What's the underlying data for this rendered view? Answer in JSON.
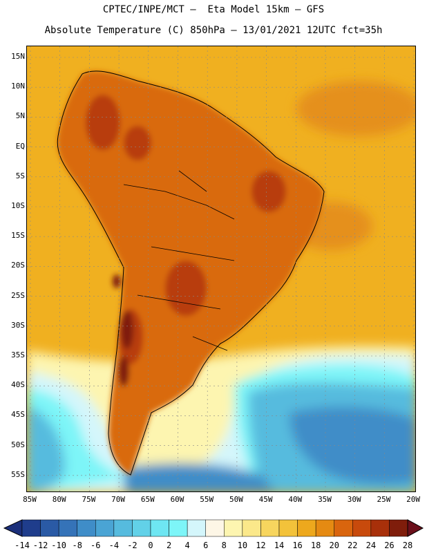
{
  "header": {
    "line1": "CPTEC/INPE/MCT –  Eta Model 15km – GFS",
    "line2": "Absolute Temperature (C) 850hPa – 13/01/2021 12UTC fct=35h"
  },
  "map": {
    "region": "South America",
    "lat_labels": [
      "15N",
      "10N",
      "5N",
      "EQ",
      "5S",
      "10S",
      "15S",
      "20S",
      "25S",
      "30S",
      "35S",
      "40S",
      "45S",
      "50S",
      "55S"
    ],
    "lon_labels": [
      "85W",
      "80W",
      "75W",
      "70W",
      "65W",
      "60W",
      "55W",
      "50W",
      "45W",
      "40W",
      "35W",
      "30W",
      "25W",
      "20W"
    ]
  },
  "colorbar": {
    "labels": [
      "-14",
      "-12",
      "-10",
      "-8",
      "-6",
      "-4",
      "-2",
      "0",
      "2",
      "4",
      "6",
      "8",
      "10",
      "12",
      "14",
      "16",
      "18",
      "20",
      "22",
      "24",
      "26",
      "28"
    ],
    "colors": [
      "#1f3d8c",
      "#2a5aa5",
      "#3573b8",
      "#3f8dc8",
      "#4aa4d4",
      "#56bbde",
      "#62d1e8",
      "#6ee6f2",
      "#7df5f8",
      "#d4f6fb",
      "#fdf6e6",
      "#fdf5b0",
      "#fbe88a",
      "#f7d55e",
      "#f3c23a",
      "#eda81d",
      "#e58a12",
      "#d9650e",
      "#c84a0c",
      "#a8300a",
      "#7f1d0b"
    ],
    "left_arrow_color": "#1b2f7a",
    "right_arrow_color": "#6b0f1a"
  },
  "field_colors": {
    "ocean_warm": "#f0b020",
    "ocean_hot": "#e5901a",
    "land_hot": "#d96a10",
    "land_very_hot": "#b83c0a",
    "land_max": "#7f1d0b",
    "cool_5_10": "#fdf5b0",
    "cool_2_5": "#d4f6fb",
    "cold_0_2": "#7df5f8",
    "cold_neg": "#56bbde",
    "cold_more": "#3f8dc8"
  }
}
